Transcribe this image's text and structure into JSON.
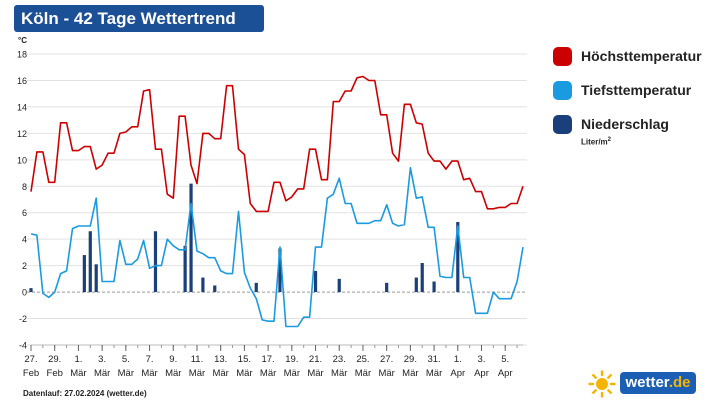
{
  "title": "Köln - 42 Tage Wettertrend",
  "footer": "Datenlauf: 27.02.2024 (wetter.de)",
  "logo": {
    "text": "wetter",
    "tld": ".de",
    "icon": "sun-icon"
  },
  "legend": {
    "items": [
      {
        "label": "Höchsttemperatur",
        "color": "#cc0000"
      },
      {
        "label": "Tiefsttemperatur",
        "color": "#1a9be0"
      },
      {
        "label": "Niederschlag",
        "color": "#1b3f7a"
      }
    ],
    "unit_prefix": "Liter/m",
    "unit_sup": "2"
  },
  "chart_data": {
    "type": "line",
    "y_unit_label": "°C",
    "ylim": [
      -4,
      18
    ],
    "yticks": [
      -4,
      -2,
      0,
      2,
      4,
      6,
      8,
      10,
      12,
      14,
      16,
      18
    ],
    "grid": true,
    "x_ticks": [
      {
        "day": 0,
        "l1": "27.",
        "l2": "Feb"
      },
      {
        "day": 2,
        "l1": "29.",
        "l2": "Feb"
      },
      {
        "day": 4,
        "l1": "1.",
        "l2": "Mär"
      },
      {
        "day": 6,
        "l1": "3.",
        "l2": "Mär"
      },
      {
        "day": 8,
        "l1": "5.",
        "l2": "Mär"
      },
      {
        "day": 10,
        "l1": "7.",
        "l2": "Mär"
      },
      {
        "day": 12,
        "l1": "9.",
        "l2": "Mär"
      },
      {
        "day": 14,
        "l1": "11.",
        "l2": "Mär"
      },
      {
        "day": 16,
        "l1": "13.",
        "l2": "Mär"
      },
      {
        "day": 18,
        "l1": "15.",
        "l2": "Mär"
      },
      {
        "day": 20,
        "l1": "17.",
        "l2": "Mär"
      },
      {
        "day": 22,
        "l1": "19.",
        "l2": "Mär"
      },
      {
        "day": 24,
        "l1": "21.",
        "l2": "Mär"
      },
      {
        "day": 26,
        "l1": "23.",
        "l2": "Mär"
      },
      {
        "day": 28,
        "l1": "25.",
        "l2": "Mär"
      },
      {
        "day": 30,
        "l1": "27.",
        "l2": "Mär"
      },
      {
        "day": 32,
        "l1": "29.",
        "l2": "Mär"
      },
      {
        "day": 34,
        "l1": "31.",
        "l2": "Mär"
      },
      {
        "day": 36,
        "l1": "1.",
        "l2": "Apr"
      },
      {
        "day": 38,
        "l1": "3.",
        "l2": "Apr"
      },
      {
        "day": 40,
        "l1": "5.",
        "l2": "Apr"
      }
    ],
    "series": [
      {
        "name": "Höchsttemperatur",
        "color": "#cc0000",
        "points": [
          [
            0,
            7.6
          ],
          [
            0.5,
            10.6
          ],
          [
            1,
            10.6
          ],
          [
            1.5,
            8.3
          ],
          [
            2,
            8.3
          ],
          [
            2.5,
            12.8
          ],
          [
            3,
            12.8
          ],
          [
            3.5,
            10.7
          ],
          [
            4,
            10.7
          ],
          [
            4.5,
            11.0
          ],
          [
            5,
            11.0
          ],
          [
            5.5,
            9.3
          ],
          [
            6,
            9.6
          ],
          [
            6.5,
            10.5
          ],
          [
            7,
            10.5
          ],
          [
            7.5,
            12.0
          ],
          [
            8,
            12.1
          ],
          [
            8.5,
            12.5
          ],
          [
            9,
            12.5
          ],
          [
            9.5,
            15.2
          ],
          [
            10,
            15.3
          ],
          [
            10.5,
            10.8
          ],
          [
            11,
            10.8
          ],
          [
            11.5,
            7.4
          ],
          [
            12,
            7.1
          ],
          [
            12.5,
            13.3
          ],
          [
            13,
            13.3
          ],
          [
            13.5,
            9.6
          ],
          [
            14,
            8.2
          ],
          [
            14.5,
            12.0
          ],
          [
            15,
            12.0
          ],
          [
            15.5,
            11.6
          ],
          [
            16,
            11.6
          ],
          [
            16.5,
            15.6
          ],
          [
            17,
            15.6
          ],
          [
            17.5,
            10.8
          ],
          [
            18,
            10.4
          ],
          [
            18.5,
            6.7
          ],
          [
            19,
            6.1
          ],
          [
            19.5,
            6.1
          ],
          [
            20,
            6.1
          ],
          [
            20.5,
            8.3
          ],
          [
            21,
            8.3
          ],
          [
            21.5,
            6.9
          ],
          [
            22,
            7.2
          ],
          [
            22.5,
            7.8
          ],
          [
            23,
            7.8
          ],
          [
            23.5,
            10.8
          ],
          [
            24,
            10.8
          ],
          [
            24.5,
            8.5
          ],
          [
            25,
            8.5
          ],
          [
            25.5,
            14.4
          ],
          [
            26,
            14.4
          ],
          [
            26.5,
            15.2
          ],
          [
            27,
            15.2
          ],
          [
            27.5,
            16.2
          ],
          [
            28,
            16.3
          ],
          [
            28.5,
            16.0
          ],
          [
            29,
            16.0
          ],
          [
            29.5,
            13.4
          ],
          [
            30,
            13.4
          ],
          [
            30.5,
            10.5
          ],
          [
            31,
            9.9
          ],
          [
            31.5,
            14.2
          ],
          [
            32,
            14.2
          ],
          [
            32.5,
            12.8
          ],
          [
            33,
            12.7
          ],
          [
            33.5,
            10.5
          ],
          [
            34,
            9.9
          ],
          [
            34.5,
            9.9
          ],
          [
            35,
            9.3
          ],
          [
            35.5,
            9.9
          ],
          [
            36,
            9.9
          ],
          [
            36.5,
            8.5
          ],
          [
            37,
            8.6
          ],
          [
            37.5,
            7.6
          ],
          [
            38,
            7.6
          ],
          [
            38.5,
            6.3
          ],
          [
            39,
            6.3
          ],
          [
            39.5,
            6.4
          ],
          [
            40,
            6.4
          ],
          [
            40.5,
            6.7
          ],
          [
            41,
            6.7
          ],
          [
            41.5,
            8.0
          ]
        ]
      },
      {
        "name": "Tiefsttemperatur",
        "color": "#1a9be0",
        "points": [
          [
            0,
            4.4
          ],
          [
            0.5,
            4.3
          ],
          [
            1,
            -0.1
          ],
          [
            1.5,
            -0.4
          ],
          [
            2,
            0
          ],
          [
            2.5,
            1.4
          ],
          [
            3,
            1.6
          ],
          [
            3.5,
            4.8
          ],
          [
            4,
            5.0
          ],
          [
            4.5,
            5.0
          ],
          [
            5,
            5.0
          ],
          [
            5.5,
            7.1
          ],
          [
            6,
            0.8
          ],
          [
            6.5,
            0.8
          ],
          [
            7,
            0.8
          ],
          [
            7.5,
            3.9
          ],
          [
            8,
            2.1
          ],
          [
            8.5,
            2.1
          ],
          [
            9,
            2.5
          ],
          [
            9.5,
            3.9
          ],
          [
            10,
            1.8
          ],
          [
            10.5,
            2.0
          ],
          [
            11,
            2.0
          ],
          [
            11.5,
            4.0
          ],
          [
            12,
            3.5
          ],
          [
            12.5,
            3.2
          ],
          [
            13,
            3.2
          ],
          [
            13.5,
            6.7
          ],
          [
            14,
            3.1
          ],
          [
            14.5,
            2.9
          ],
          [
            15,
            2.6
          ],
          [
            15.5,
            2.6
          ],
          [
            16,
            1.6
          ],
          [
            16.5,
            1.4
          ],
          [
            17,
            1.4
          ],
          [
            17.5,
            6.1
          ],
          [
            18,
            1.5
          ],
          [
            18.5,
            0.3
          ],
          [
            19,
            -0.5
          ],
          [
            19.5,
            -2.1
          ],
          [
            20,
            -2.2
          ],
          [
            20.5,
            -2.2
          ],
          [
            21,
            3.4
          ],
          [
            21.5,
            -2.6
          ],
          [
            22,
            -2.6
          ],
          [
            22.5,
            -2.6
          ],
          [
            23,
            -1.9
          ],
          [
            23.5,
            -1.9
          ],
          [
            24,
            3.4
          ],
          [
            24.5,
            3.4
          ],
          [
            25,
            7.1
          ],
          [
            25.5,
            7.4
          ],
          [
            26,
            8.6
          ],
          [
            26.5,
            6.7
          ],
          [
            27,
            6.7
          ],
          [
            27.5,
            5.2
          ],
          [
            28,
            5.2
          ],
          [
            28.5,
            5.2
          ],
          [
            29,
            5.4
          ],
          [
            29.5,
            5.4
          ],
          [
            30,
            6.6
          ],
          [
            30.5,
            5.2
          ],
          [
            31,
            5.0
          ],
          [
            31.5,
            5.1
          ],
          [
            32,
            9.4
          ],
          [
            32.5,
            7.1
          ],
          [
            33,
            7.2
          ],
          [
            33.5,
            4.9
          ],
          [
            34,
            4.9
          ],
          [
            34.5,
            1.2
          ],
          [
            35,
            1.1
          ],
          [
            35.5,
            1.1
          ],
          [
            36,
            5.0
          ],
          [
            36.5,
            1.1
          ],
          [
            37,
            1.1
          ],
          [
            37.5,
            -1.6
          ],
          [
            38,
            -1.6
          ],
          [
            38.5,
            -1.6
          ],
          [
            39,
            0
          ],
          [
            39.5,
            -0.5
          ],
          [
            40,
            -0.5
          ],
          [
            40.5,
            -0.5
          ],
          [
            41,
            0.8
          ],
          [
            41.5,
            3.4
          ]
        ]
      },
      {
        "name": "Niederschlag",
        "color": "#1b3f7a",
        "kind": "bars",
        "points": [
          [
            0,
            0.3
          ],
          [
            4.5,
            2.8
          ],
          [
            5,
            4.6
          ],
          [
            5.5,
            2.1
          ],
          [
            10.5,
            4.6
          ],
          [
            13,
            3.5
          ],
          [
            13.5,
            8.2
          ],
          [
            14.5,
            1.1
          ],
          [
            15.5,
            0.5
          ],
          [
            19,
            0.7
          ],
          [
            21,
            3.3
          ],
          [
            24,
            1.6
          ],
          [
            26,
            1.0
          ],
          [
            30,
            0.7
          ],
          [
            32.5,
            1.1
          ],
          [
            33,
            2.2
          ],
          [
            34,
            0.8
          ],
          [
            36,
            5.3
          ]
        ]
      }
    ]
  }
}
